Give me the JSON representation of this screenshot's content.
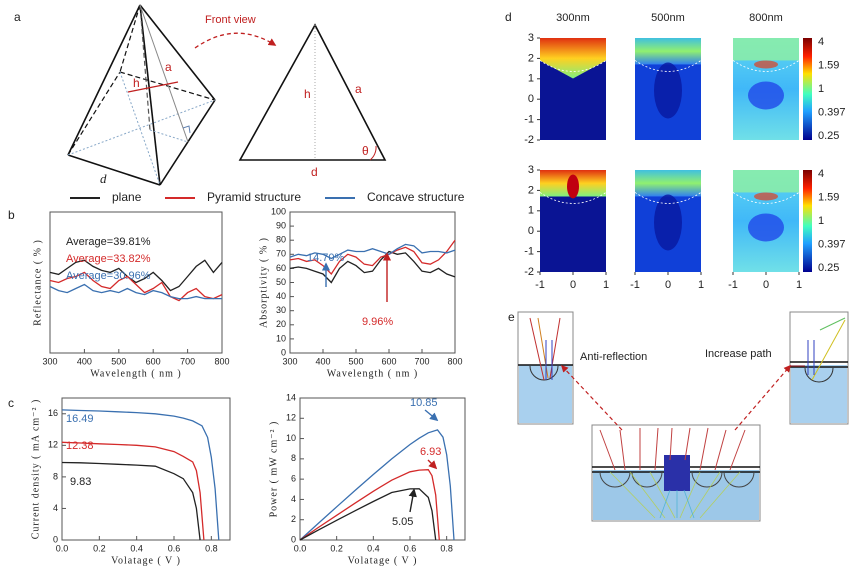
{
  "panel_labels": [
    "a",
    "b",
    "c",
    "d",
    "e"
  ],
  "panel_a": {
    "front_view": "Front view",
    "pyramid": {
      "a": "a",
      "h": "h",
      "d": "d"
    },
    "front": {
      "h": "h",
      "a": "a",
      "d": "d",
      "theta": "θ"
    }
  },
  "legend": [
    {
      "name": "plane",
      "color": "#222222"
    },
    {
      "name": "Pyramid structure",
      "color": "#d42a2a"
    },
    {
      "name": "Concave structure",
      "color": "#3a70b0"
    }
  ],
  "chart_data": [
    {
      "type": "line",
      "x_label": "Wavelength ( nm )",
      "y_label": "Reflectance ( % )",
      "x": [
        300,
        325,
        350,
        375,
        400,
        425,
        450,
        475,
        500,
        525,
        550,
        575,
        600,
        625,
        650,
        675,
        700,
        725,
        750,
        775,
        800
      ],
      "xlim": [
        300,
        800
      ],
      "xticks": [
        300,
        400,
        500,
        600,
        700,
        800
      ],
      "ylim": [
        0,
        70
      ],
      "series": [
        {
          "color": "#222222",
          "values": [
            40,
            39,
            42,
            45,
            46,
            43,
            41,
            40,
            42,
            38,
            35,
            37,
            40,
            36,
            31,
            33,
            38,
            43,
            46,
            40,
            45
          ]
        },
        {
          "color": "#d42a2a",
          "values": [
            36,
            35,
            37,
            38,
            40,
            36,
            33,
            32,
            36,
            38,
            34,
            30,
            32,
            35,
            28,
            26,
            30,
            32,
            28,
            27,
            29
          ]
        },
        {
          "color": "#3a70b0",
          "values": [
            33,
            31,
            30,
            32,
            34,
            31,
            30,
            31,
            30,
            32,
            30,
            29,
            31,
            30,
            28,
            27,
            27,
            28,
            27,
            27,
            27
          ]
        }
      ],
      "annotations": [
        {
          "text": "Average=39.81%",
          "color": "#222222"
        },
        {
          "text": "Average=33.82%",
          "color": "#d42a2a"
        },
        {
          "text": "Average=30.96%",
          "color": "#3a70b0"
        }
      ]
    },
    {
      "type": "line",
      "x_label": "Wavelength ( nm )",
      "y_label": "Absorptivity ( % )",
      "x": [
        300,
        325,
        350,
        375,
        400,
        425,
        450,
        475,
        500,
        525,
        550,
        575,
        600,
        625,
        650,
        675,
        700,
        725,
        750,
        775,
        800
      ],
      "xlim": [
        300,
        800
      ],
      "xticks": [
        300,
        400,
        500,
        600,
        700,
        800
      ],
      "ylim": [
        0,
        100
      ],
      "yticks": [
        0,
        10,
        20,
        30,
        40,
        50,
        60,
        70,
        80,
        90,
        100
      ],
      "series": [
        {
          "color": "#222222",
          "values": [
            60,
            61,
            60,
            58,
            56,
            50,
            60,
            65,
            62,
            57,
            58,
            66,
            72,
            70,
            71,
            65,
            58,
            57,
            60,
            56,
            54
          ]
        },
        {
          "color": "#d42a2a",
          "values": [
            66,
            67,
            65,
            66,
            62,
            56,
            65,
            70,
            68,
            63,
            62,
            68,
            70,
            73,
            75,
            72,
            64,
            63,
            66,
            72,
            80
          ]
        },
        {
          "color": "#3a70b0",
          "values": [
            68,
            70,
            69,
            71,
            70,
            67,
            70,
            73,
            72,
            72,
            74,
            72,
            70,
            74,
            77,
            76,
            71,
            72,
            72,
            71,
            73
          ]
        }
      ],
      "annotations": [
        {
          "text": "14.70%",
          "color": "#3a70b0"
        },
        {
          "text": "9.96%",
          "color": "#d42a2a"
        }
      ]
    },
    {
      "type": "line",
      "x_label": "Volatage ( V )",
      "y_label": "Current density ( mA cm⁻² )",
      "xlim": [
        0,
        0.9
      ],
      "xticks": [
        {
          "value": 0,
          "label": "0.0"
        },
        0.2,
        0.4,
        0.6,
        0.8
      ],
      "ylim": [
        0,
        18
      ],
      "yticks": [
        0,
        4,
        8,
        12,
        16
      ],
      "series": [
        {
          "color": "#3a70b0",
          "x": [
            0,
            0.1,
            0.2,
            0.3,
            0.4,
            0.5,
            0.6,
            0.65,
            0.7,
            0.75,
            0.78,
            0.8,
            0.82,
            0.84
          ],
          "values": [
            16.49,
            16.42,
            16.35,
            16.25,
            16.15,
            16.0,
            15.7,
            15.45,
            15.1,
            14.47,
            13.0,
            10.5,
            6.5,
            0
          ]
        },
        {
          "color": "#d42a2a",
          "x": [
            0,
            0.1,
            0.2,
            0.3,
            0.4,
            0.5,
            0.6,
            0.65,
            0.7,
            0.72,
            0.74,
            0.76
          ],
          "values": [
            12.38,
            12.3,
            12.2,
            12.1,
            12.0,
            11.8,
            11.2,
            10.6,
            9.9,
            8.8,
            6.0,
            0
          ]
        },
        {
          "color": "#222222",
          "x": [
            0,
            0.1,
            0.2,
            0.3,
            0.4,
            0.5,
            0.6,
            0.65,
            0.7,
            0.72,
            0.74
          ],
          "values": [
            9.83,
            9.78,
            9.7,
            9.6,
            9.5,
            9.35,
            8.4,
            7.77,
            6.0,
            4.0,
            0
          ]
        }
      ],
      "annotations": [
        {
          "text": "16.49",
          "color": "#3a70b0"
        },
        {
          "text": "12.38",
          "color": "#d42a2a"
        },
        {
          "text": "9.83",
          "color": "#222222"
        }
      ]
    },
    {
      "type": "line",
      "x_label": "Volatage ( V )",
      "y_label": "Power ( mW cm⁻² )",
      "xlim": [
        0,
        0.9
      ],
      "xticks": [
        {
          "value": 0,
          "label": "0.0"
        },
        0.2,
        0.4,
        0.6,
        0.8
      ],
      "ylim": [
        0,
        14
      ],
      "yticks": [
        0,
        2,
        4,
        6,
        8,
        10,
        12,
        14
      ],
      "series": [
        {
          "color": "#3a70b0",
          "x": [
            0,
            0.1,
            0.2,
            0.3,
            0.4,
            0.5,
            0.6,
            0.65,
            0.7,
            0.75,
            0.78,
            0.8,
            0.82,
            0.84
          ],
          "values": [
            0,
            1.64,
            3.27,
            4.88,
            6.46,
            8.0,
            9.42,
            10.04,
            10.57,
            10.85,
            10.14,
            8.4,
            5.33,
            0
          ]
        },
        {
          "color": "#d42a2a",
          "x": [
            0,
            0.1,
            0.2,
            0.3,
            0.4,
            0.5,
            0.6,
            0.65,
            0.7,
            0.72,
            0.74,
            0.76
          ],
          "values": [
            0,
            1.23,
            2.44,
            3.63,
            4.8,
            5.9,
            6.72,
            6.89,
            6.93,
            6.34,
            4.44,
            0
          ]
        },
        {
          "color": "#222222",
          "x": [
            0,
            0.1,
            0.2,
            0.3,
            0.4,
            0.5,
            0.6,
            0.65,
            0.7,
            0.72,
            0.74
          ],
          "values": [
            0,
            0.98,
            1.94,
            2.88,
            3.8,
            4.68,
            5.04,
            5.05,
            4.2,
            2.88,
            0
          ]
        }
      ],
      "annotations": [
        {
          "text": "10.85",
          "color": "#3a70b0"
        },
        {
          "text": "6.93",
          "color": "#d42a2a"
        },
        {
          "text": "5.05",
          "color": "#222222"
        }
      ]
    }
  ],
  "panel_d": {
    "columns": [
      "300nm",
      "500nm",
      "800nm"
    ],
    "xlim": [
      -1,
      1
    ],
    "ylim": [
      -2,
      3
    ],
    "xticks": [
      -1,
      0,
      1
    ],
    "yticks": [
      -2,
      -1,
      0,
      1,
      2,
      3
    ],
    "colorbar": [
      4,
      1.59,
      1,
      0.397,
      0.25
    ]
  },
  "panel_e": {
    "left_label": "Anti-reflection",
    "right_label": "Increase path"
  }
}
